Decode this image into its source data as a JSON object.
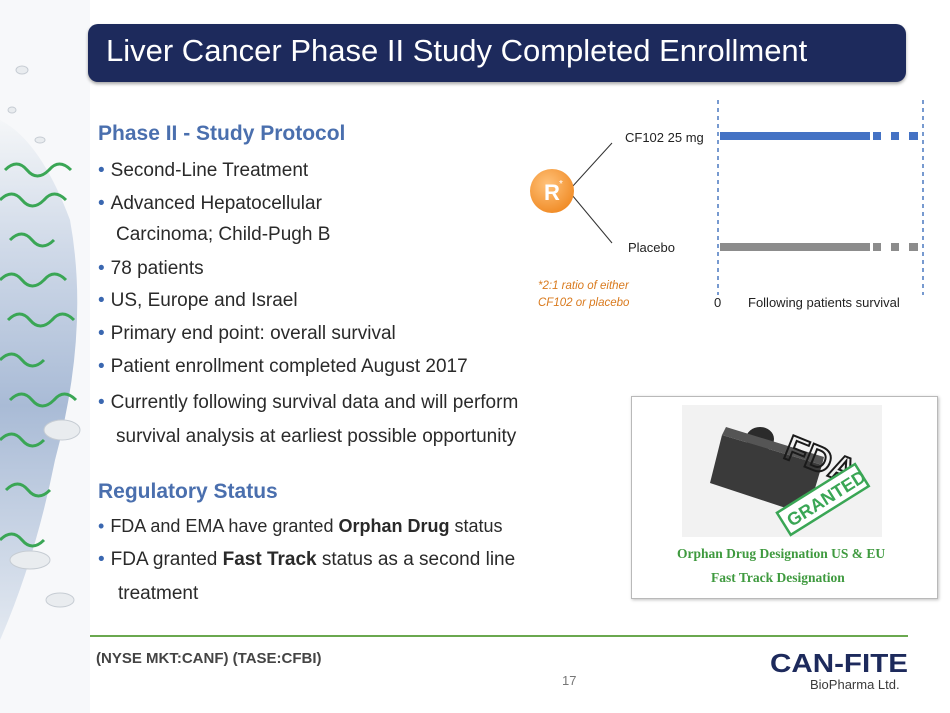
{
  "title": "Liver Cancer Phase II Study Completed Enrollment",
  "protocol": {
    "heading": "Phase II -  Study Protocol",
    "bullets": [
      "Second-Line Treatment",
      "Advanced Hepatocellular",
      "78 patients",
      "US, Europe and Israel",
      "Primary end point: overall survival",
      "Patient enrollment completed August 2017",
      "Currently following survival data and will perform"
    ],
    "bullet2_cont": "Carcinoma; Child-Pugh B",
    "bullet7_cont": "survival analysis at earliest possible opportunity"
  },
  "regulatory": {
    "heading": "Regulatory  Status",
    "b1_pre": "FDA and EMA have granted ",
    "b1_bold": "Orphan Drug",
    "b1_post": " status",
    "b2_pre": "FDA granted ",
    "b2_bold": "Fast Track",
    "b2_post": " status as a second line",
    "b2_cont": "treatment"
  },
  "diagram": {
    "random_label": "R",
    "random_sup": "*",
    "arm1": "CF102 25 mg",
    "arm2": "Placebo",
    "note1": "*2:1 ratio of either",
    "note2": "CF102 or placebo",
    "axis_zero": "0",
    "axis_label": "Following patients survival",
    "colors": {
      "arm1": "#4472c4",
      "arm2": "#8c8c8c",
      "randomize": "#f39a3d",
      "note": "#d97a1e"
    }
  },
  "fda": {
    "logo_text": "FDA",
    "stamp": "GRANTED",
    "caption1": "Orphan Drug Designation US & EU",
    "caption2": "Fast Track Designation"
  },
  "footer": {
    "ticker": "(NYSE MKT:CANF)  (TASE:CFBI)",
    "page": "17",
    "logo_main": "CAN-FITE",
    "logo_sub": "BioPharma Ltd."
  }
}
